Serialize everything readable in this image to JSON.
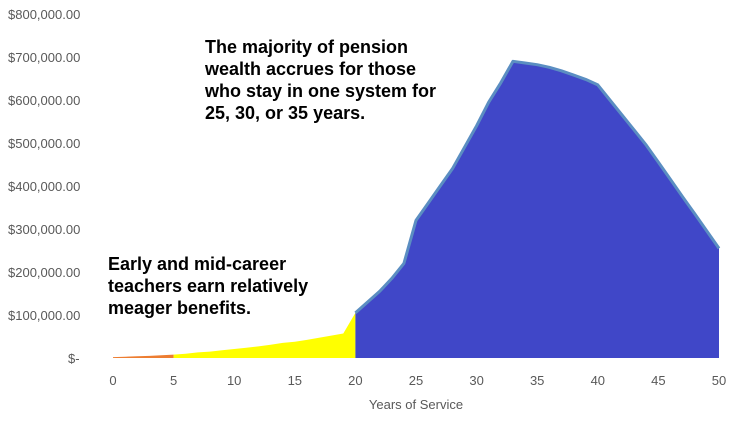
{
  "chart_data": {
    "type": "area",
    "xlabel": "Years of Service",
    "ylabel": "",
    "xlim": [
      0,
      50
    ],
    "ylim": [
      0,
      800000
    ],
    "x_ticks": [
      0,
      5,
      10,
      15,
      20,
      25,
      30,
      35,
      40,
      45,
      50
    ],
    "y_ticks": [
      {
        "value": 0,
        "label": "$-"
      },
      {
        "value": 100000,
        "label": "$100,000.00"
      },
      {
        "value": 200000,
        "label": "$200,000.00"
      },
      {
        "value": 300000,
        "label": "$300,000.00"
      },
      {
        "value": 400000,
        "label": "$400,000.00"
      },
      {
        "value": 500000,
        "label": "$500,000.00"
      },
      {
        "value": 600000,
        "label": "$600,000.00"
      },
      {
        "value": 700000,
        "label": "$700,000.00"
      },
      {
        "value": 800000,
        "label": "$800,000.00"
      }
    ],
    "grid": false,
    "legend": "none",
    "series": [
      {
        "color": "#ed7d31",
        "x": [
          0,
          1,
          2,
          3,
          4,
          5
        ],
        "values": [
          2000,
          3000,
          4000,
          5000,
          6500,
          8000
        ]
      },
      {
        "color": "#ffff00",
        "x": [
          5,
          6,
          7,
          8,
          9,
          10,
          11,
          12,
          13,
          14,
          15,
          16,
          17,
          18,
          19,
          20
        ],
        "values": [
          8000,
          10000,
          13000,
          15000,
          18000,
          21000,
          24000,
          27000,
          31000,
          35000,
          38000,
          42000,
          47000,
          52000,
          57000,
          105000
        ]
      },
      {
        "color": "#4047c8",
        "outline": "#5b8ec2",
        "x": [
          20,
          21,
          22,
          23,
          24,
          25,
          26,
          27,
          28,
          29,
          30,
          31,
          32,
          33,
          34,
          35,
          36,
          37,
          38,
          39,
          40,
          41,
          42,
          43,
          44,
          45,
          46,
          47,
          48,
          49,
          50
        ],
        "values": [
          105000,
          130000,
          155000,
          185000,
          220000,
          320000,
          360000,
          400000,
          440000,
          490000,
          540000,
          595000,
          640000,
          690000,
          686000,
          682000,
          676000,
          668000,
          658000,
          648000,
          635000,
          600000,
          565000,
          530000,
          495000,
          455000,
          415000,
          375000,
          335000,
          295000,
          255000
        ]
      }
    ],
    "annotations": [
      {
        "lines": [
          "The majority of pension",
          "wealth accrues for those",
          "who stay in one system for",
          "25, 30, or 35 years."
        ]
      },
      {
        "lines": [
          "Early and mid-career",
          "teachers earn relatively",
          "meager benefits."
        ]
      }
    ]
  }
}
